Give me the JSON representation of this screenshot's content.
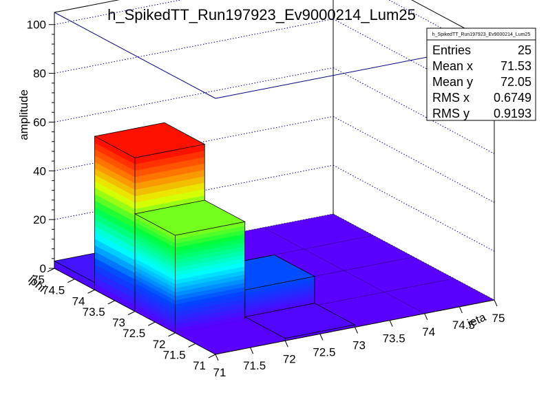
{
  "chart_data": {
    "type": "lego3d",
    "title": "h_SpikedTT_Run197923_Ev9000214_Lum25",
    "xlabel": "ieta",
    "ylabel": "iphi",
    "zlabel": "amplitude",
    "x_ticks": [
      "71",
      "71.5",
      "72",
      "72.5",
      "73",
      "73.5",
      "74",
      "74.5",
      "75"
    ],
    "y_ticks": [
      "71",
      "71.5",
      "72",
      "72.5",
      "73",
      "73.5",
      "74",
      "74.5",
      "75"
    ],
    "z_ticks": [
      "0",
      "20",
      "40",
      "60",
      "80",
      "100"
    ],
    "xlim": [
      71,
      75
    ],
    "ylim": [
      71,
      75
    ],
    "zlim": [
      0,
      105
    ],
    "grid": true,
    "palette": "rainbow",
    "bins": [
      {
        "x": 71,
        "y": 72,
        "value": 40
      },
      {
        "x": 71,
        "y": 73,
        "value": 63
      },
      {
        "x": 72,
        "y": 72,
        "value": 12
      },
      {
        "x": 71,
        "y": 74,
        "value": 3
      },
      {
        "x": 72,
        "y": 71,
        "value": 1
      }
    ]
  },
  "stats": {
    "name": "h_SpikedTT_Run197923_Ev9000214_Lum25",
    "rows": [
      {
        "label": "Entries",
        "value": "25"
      },
      {
        "label": "Mean x",
        "value": "71.53"
      },
      {
        "label": "Mean y",
        "value": "72.05"
      },
      {
        "label": "RMS x",
        "value": "0.6749"
      },
      {
        "label": "RMS y",
        "value": "0.9193"
      }
    ]
  }
}
